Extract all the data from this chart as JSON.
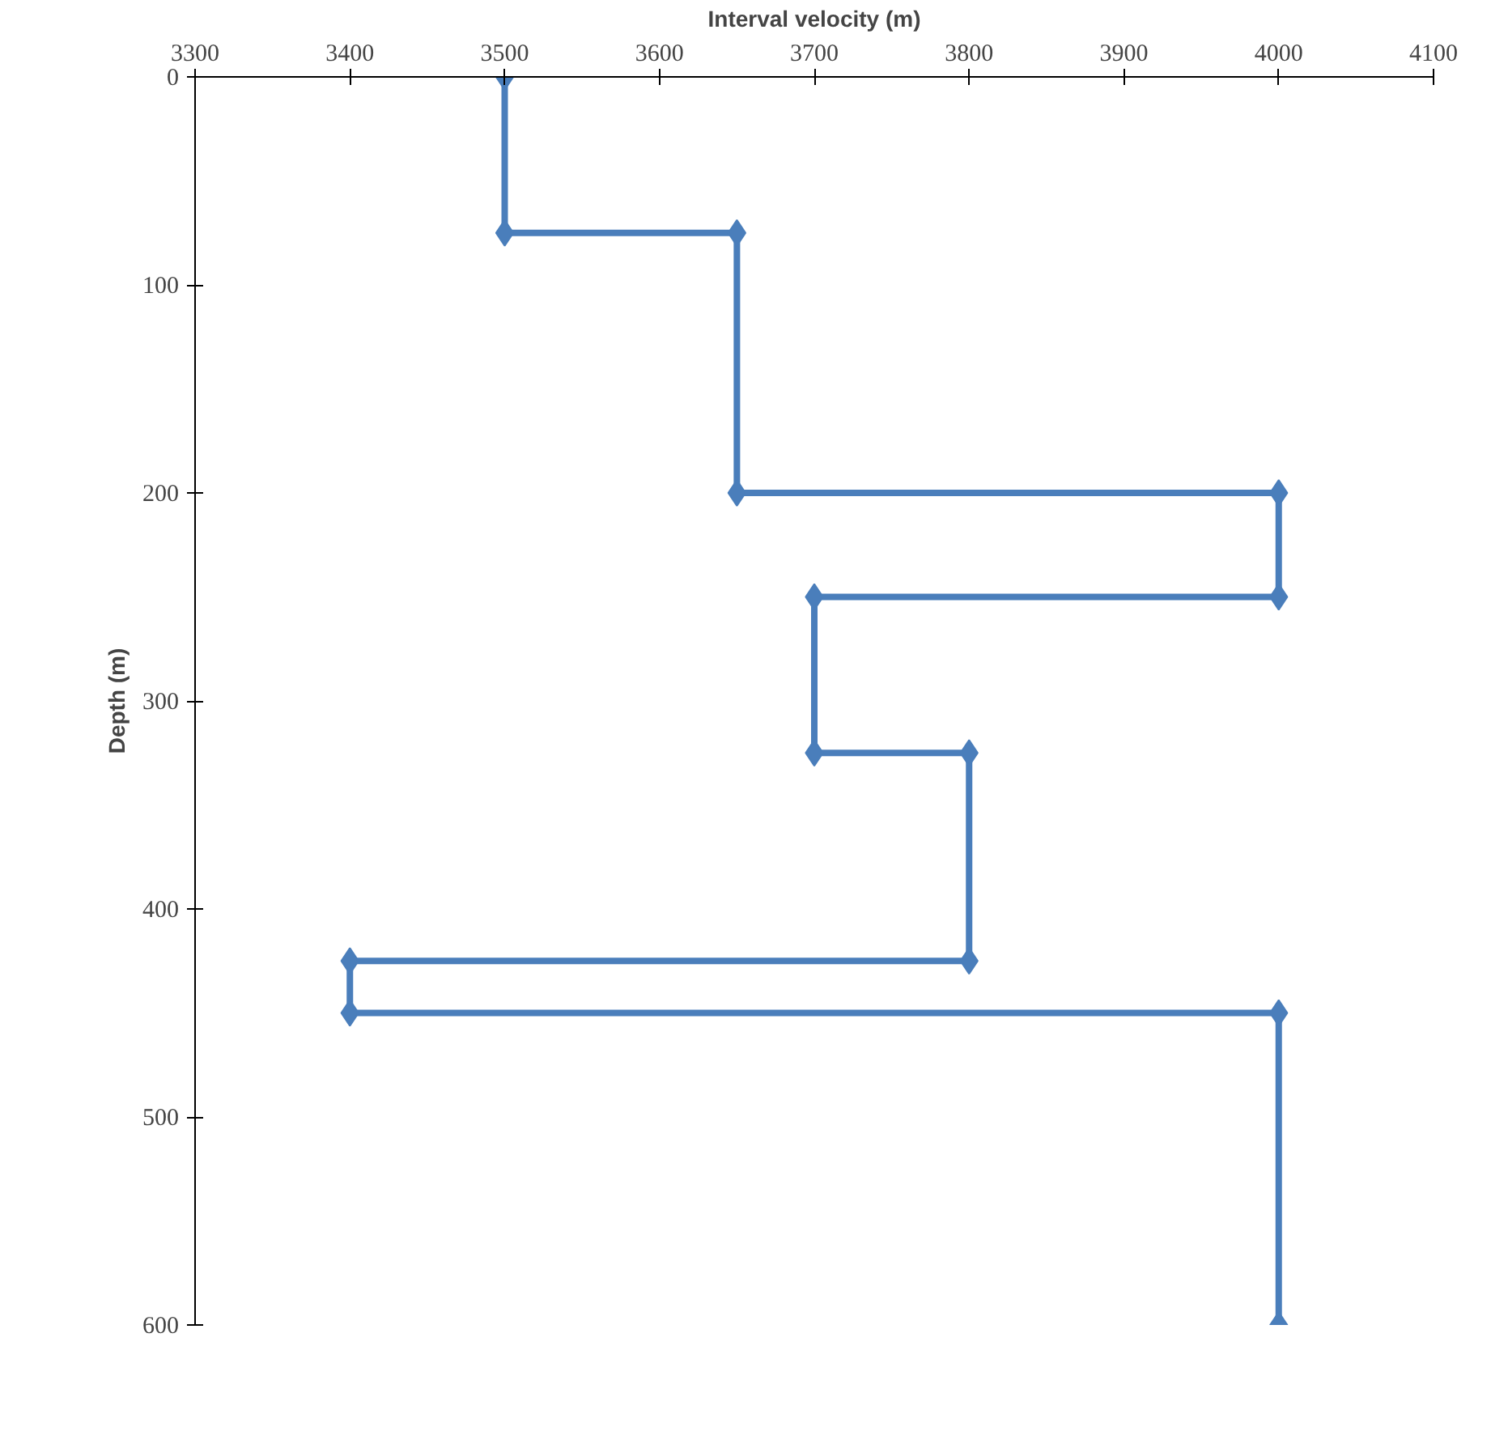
{
  "chart_data": {
    "type": "line",
    "xlabel": "Interval velocity (m)",
    "ylabel": "Depth (m)",
    "xlim": [
      3300,
      4100
    ],
    "xticks": [
      3300,
      3400,
      3500,
      3600,
      3700,
      3800,
      3900,
      4000,
      4100
    ],
    "ylim": [
      600,
      0
    ],
    "yticks": [
      0,
      100,
      200,
      300,
      400,
      500,
      600
    ],
    "grid": false,
    "marker": "diamond",
    "line_style": "solid",
    "series": [
      {
        "color": "#4a7ebb",
        "x": [
          3500,
          3500,
          3650,
          3650,
          4000,
          4000,
          3700,
          3700,
          3800,
          3800,
          3400,
          3400,
          4000,
          4000
        ],
        "values": [
          0,
          75,
          75,
          200,
          200,
          250,
          250,
          325,
          325,
          425,
          425,
          450,
          450,
          600
        ]
      }
    ]
  }
}
